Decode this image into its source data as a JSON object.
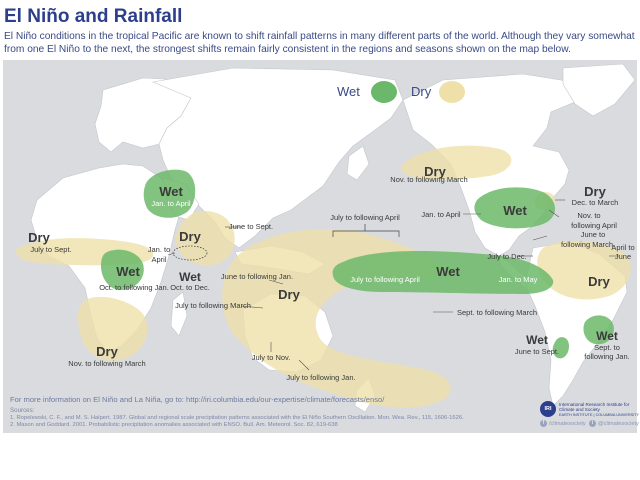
{
  "title": "El Niño and Rainfall",
  "intro": "El Niño conditions in the tropical Pacific are known to shift rainfall patterns in many different parts of the world. Although they vary somewhat from one El Niño to the next, the strongest shifts remain fairly consistent in the regions and seasons shown on the map below.",
  "legend": {
    "wet": "Wet",
    "dry": "Dry"
  },
  "colors": {
    "wet": "#6cb86a",
    "dry": "#eee0a8",
    "land": "#ffffff",
    "ocean": "#d9dbde",
    "title": "#2c3f8c",
    "label": "#3a4a86"
  },
  "regions": [
    {
      "id": "central-asia-wet",
      "type": "Wet",
      "season": "Jan. to April"
    },
    {
      "id": "india-dry",
      "type": "Dry",
      "season": "June to Sept."
    },
    {
      "id": "sahel-dry",
      "type": "Dry",
      "season": "July to Sept."
    },
    {
      "id": "east-africa-wet",
      "type": "Wet",
      "season": "Oct. to Dec."
    },
    {
      "id": "east-africa-jan-apr",
      "type": "",
      "season": "Jan. to April"
    },
    {
      "id": "southeast-africa-wet",
      "type": "Wet",
      "season": "Oct. to following Jan."
    },
    {
      "id": "southern-africa-dry",
      "type": "Dry",
      "season": "Nov. to following March"
    },
    {
      "id": "indonesia-dry",
      "type": "Dry",
      "season": "July to following March"
    },
    {
      "id": "indonesia-june-jan",
      "type": "",
      "season": "June to following Jan."
    },
    {
      "id": "australia-july-nov",
      "type": "",
      "season": "July to Nov."
    },
    {
      "id": "australia-july-jan",
      "type": "",
      "season": "July to following Jan."
    },
    {
      "id": "central-pacific-dry",
      "type": "",
      "season": "July to following April"
    },
    {
      "id": "equatorial-pacific-wet",
      "type": "Wet",
      "season": "July to following April"
    },
    {
      "id": "equatorial-pacific-jan-may",
      "type": "",
      "season": "Jan. to May"
    },
    {
      "id": "south-pacific-dry",
      "type": "",
      "season": "Sept. to following March"
    },
    {
      "id": "north-america-dry",
      "type": "Dry",
      "season": "Nov. to following March"
    },
    {
      "id": "us-south-wet",
      "type": "Wet",
      "season": "Jan. to April"
    },
    {
      "id": "us-southeast-dry",
      "type": "Dry",
      "season": "Dec. to March"
    },
    {
      "id": "caribbean-nov-apr",
      "type": "",
      "season": "Nov. to following April"
    },
    {
      "id": "central-america-june-mar",
      "type": "",
      "season": "June to following March"
    },
    {
      "id": "northern-sa-july-dec",
      "type": "",
      "season": "July to Dec."
    },
    {
      "id": "northeast-brazil-dry",
      "type": "Dry",
      "season": "April to June"
    },
    {
      "id": "chile-wet",
      "type": "Wet",
      "season": "June to Sept."
    },
    {
      "id": "southeast-sa-wet",
      "type": "Wet",
      "season": "Sept. to following Jan."
    }
  ],
  "footer": {
    "more_info": "For more information on El Niño and La Niña, go to: http://iri.columbia.edu/our-expertise/climate/forecasts/enso/",
    "sources_label": "Sources:",
    "source_1": "1. Ropelewski, C. F., and M. S. Halpert. 1987. Global and regional scale precipitation patterns associated with the El Niño Southern Oscillation. Mon. Wea. Rev., 115, 1606-1626.",
    "source_2": "2. Mason and Goddard. 2001. Probabilistic precipitation anomalies associated with ENSO. Bull. Am. Meteorol. Soc. 82, 619-638",
    "logo_seal": "IRI",
    "logo_text": "International Research Institute for Climate and Society",
    "logo_sub": "EARTH INSTITUTE | COLUMBIA UNIVERSITY",
    "facebook": "/climatesociety",
    "twitter": "@climatesociety"
  }
}
